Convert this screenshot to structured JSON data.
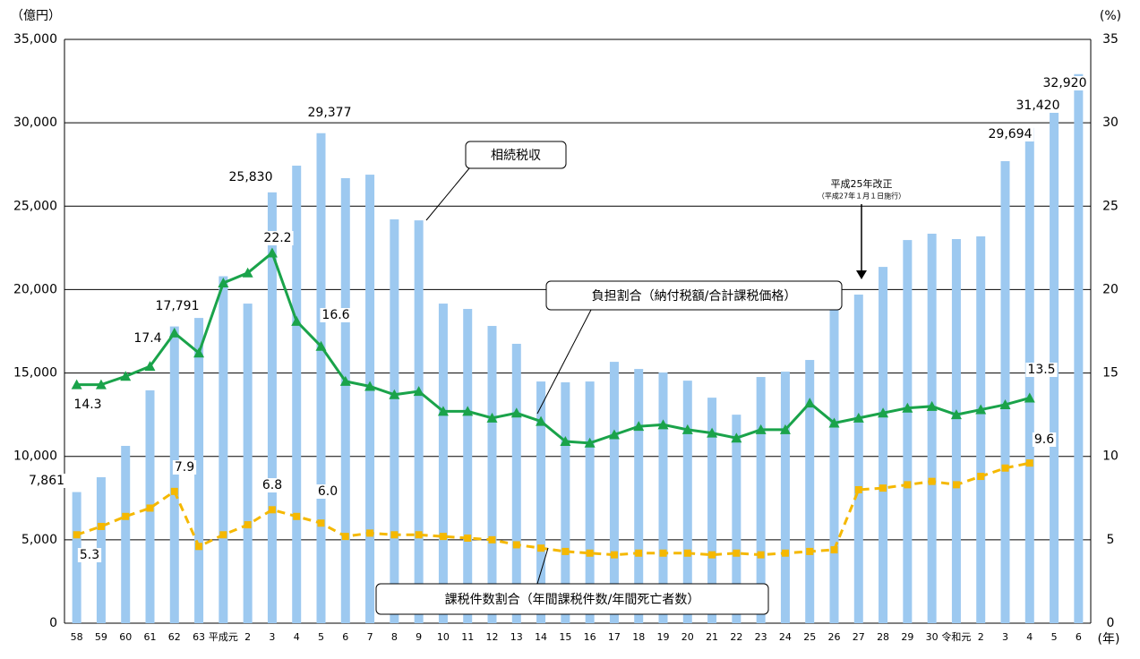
{
  "chart_data": {
    "type": "bar-line",
    "y_label": "（億円）",
    "y2_label": "(%)",
    "x_label": "(年)",
    "categories": [
      "58",
      "59",
      "60",
      "61",
      "62",
      "63",
      "平成元",
      "2",
      "3",
      "4",
      "5",
      "6",
      "7",
      "8",
      "9",
      "10",
      "11",
      "12",
      "13",
      "14",
      "15",
      "16",
      "17",
      "18",
      "19",
      "20",
      "21",
      "22",
      "23",
      "24",
      "25",
      "26",
      "27",
      "28",
      "29",
      "30",
      "令和元",
      "2",
      "3",
      "4",
      "5",
      "6"
    ],
    "ylim": [
      0,
      35000
    ],
    "yticks": [
      0,
      {
        "value": 5000,
        "label": "5,000"
      },
      {
        "value": 10000,
        "label": "10,000"
      },
      {
        "value": 15000,
        "label": "15,000"
      },
      {
        "value": 20000,
        "label": "20,000"
      },
      {
        "value": 25000,
        "label": "25,000"
      },
      {
        "value": 30000,
        "label": "30,000"
      },
      {
        "value": 35000,
        "label": "35,000"
      }
    ],
    "y2lim": [
      0,
      35
    ],
    "y2ticks": [
      0,
      5,
      10,
      15,
      20,
      25,
      30,
      35
    ],
    "grid": true,
    "series": [
      {
        "name": "相続税収",
        "type": "bar",
        "color": "#9dc9f0",
        "values": [
          7861,
          8750,
          10630,
          13960,
          17791,
          18300,
          20800,
          19160,
          25830,
          27430,
          29377,
          26680,
          26890,
          24210,
          24150,
          19160,
          18840,
          17820,
          16750,
          14490,
          14440,
          14490,
          15670,
          15240,
          15030,
          14540,
          13520,
          12500,
          14760,
          15080,
          15780,
          18840,
          19700,
          21360,
          22970,
          23350,
          23030,
          23190,
          27700,
          29694,
          31420,
          32920
        ],
        "value_labels": [
          "7,861",
          null,
          null,
          null,
          "17,791",
          null,
          null,
          null,
          "25,830",
          null,
          "29,377",
          null,
          null,
          null,
          null,
          null,
          null,
          null,
          null,
          null,
          null,
          null,
          null,
          null,
          null,
          null,
          null,
          null,
          null,
          null,
          null,
          null,
          null,
          null,
          null,
          null,
          null,
          null,
          null,
          "29,694",
          "31,420",
          "32,920"
        ]
      },
      {
        "name": "負担割合（納付税額/合計課税価格）",
        "type": "line",
        "axis": "y2",
        "color": "#1aa34a",
        "marker": "triangle",
        "values": [
          14.3,
          14.3,
          14.8,
          15.4,
          17.4,
          16.2,
          20.4,
          21.0,
          22.2,
          18.1,
          16.6,
          14.5,
          14.2,
          13.7,
          13.9,
          12.7,
          12.7,
          12.3,
          12.6,
          12.1,
          10.9,
          10.8,
          11.3,
          11.8,
          11.9,
          11.6,
          11.4,
          11.1,
          11.6,
          11.6,
          13.2,
          12.0,
          12.3,
          12.6,
          12.9,
          13.0,
          12.5,
          12.8,
          13.1,
          13.5,
          null,
          null
        ],
        "value_labels": [
          "14.3",
          null,
          null,
          null,
          "17.4",
          null,
          null,
          null,
          "22.2",
          null,
          "16.6",
          null,
          null,
          null,
          null,
          null,
          null,
          null,
          null,
          null,
          null,
          null,
          null,
          null,
          null,
          null,
          null,
          null,
          null,
          null,
          null,
          null,
          null,
          null,
          null,
          null,
          null,
          null,
          null,
          "13.5",
          null,
          null
        ]
      },
      {
        "name": "課税件数割合（年間課税件数/年間死亡者数）",
        "type": "line",
        "axis": "y2",
        "color": "#f5b800",
        "marker": "square",
        "dashed": true,
        "values": [
          5.3,
          5.8,
          6.4,
          6.9,
          7.9,
          4.6,
          5.3,
          5.9,
          6.8,
          6.4,
          6.0,
          5.2,
          5.4,
          5.3,
          5.3,
          5.2,
          5.1,
          5.0,
          4.7,
          4.5,
          4.3,
          4.2,
          4.1,
          4.2,
          4.2,
          4.2,
          4.1,
          4.2,
          4.1,
          4.2,
          4.3,
          4.4,
          8.0,
          8.1,
          8.3,
          8.5,
          8.3,
          8.8,
          9.3,
          9.6,
          null,
          null
        ],
        "value_labels": [
          "5.3",
          null,
          null,
          null,
          "7.9",
          null,
          null,
          null,
          "6.8",
          null,
          "6.0",
          null,
          null,
          null,
          null,
          null,
          null,
          null,
          null,
          null,
          null,
          null,
          null,
          null,
          null,
          null,
          null,
          null,
          null,
          null,
          null,
          null,
          null,
          null,
          null,
          null,
          null,
          null,
          null,
          "9.6",
          null,
          null
        ]
      }
    ],
    "annotations": [
      "平成25年改正",
      "（平成27年１月１日施行）"
    ]
  }
}
